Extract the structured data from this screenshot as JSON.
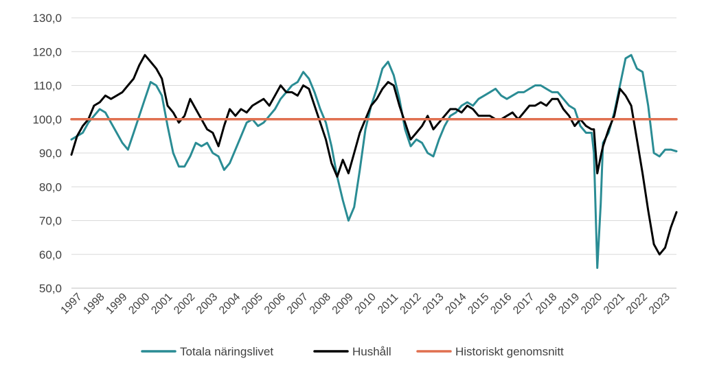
{
  "chart_data": {
    "type": "line",
    "title": "",
    "xlabel": "",
    "ylabel": "",
    "ylim": [
      50,
      130
    ],
    "xlim": [
      1997,
      2023.75
    ],
    "y_ticks": [
      "50,0",
      "60,0",
      "70,0",
      "80,0",
      "90,0",
      "100,0",
      "110,0",
      "120,0",
      "130,0"
    ],
    "x_ticks": [
      "1997",
      "1998",
      "1999",
      "2000",
      "2001",
      "2002",
      "2003",
      "2004",
      "2005",
      "2006",
      "2007",
      "2008",
      "2009",
      "2010",
      "2011",
      "2012",
      "2013",
      "2014",
      "2015",
      "2016",
      "2017",
      "2018",
      "2019",
      "2020",
      "2021",
      "2022",
      "2023"
    ],
    "grid": "horizontal",
    "legend_position": "bottom",
    "series": [
      {
        "name": "Totala näringslivet",
        "color": "#2a8c94",
        "x": [
          1997.0,
          1997.25,
          1997.5,
          1997.75,
          1998.0,
          1998.25,
          1998.5,
          1998.75,
          1999.0,
          1999.25,
          1999.5,
          1999.75,
          2000.0,
          2000.25,
          2000.5,
          2000.75,
          2001.0,
          2001.25,
          2001.5,
          2001.75,
          2002.0,
          2002.25,
          2002.5,
          2002.75,
          2003.0,
          2003.25,
          2003.5,
          2003.75,
          2004.0,
          2004.25,
          2004.5,
          2004.75,
          2005.0,
          2005.25,
          2005.5,
          2005.75,
          2006.0,
          2006.25,
          2006.5,
          2006.75,
          2007.0,
          2007.25,
          2007.5,
          2007.75,
          2008.0,
          2008.25,
          2008.5,
          2008.75,
          2009.0,
          2009.25,
          2009.5,
          2009.75,
          2010.0,
          2010.25,
          2010.5,
          2010.75,
          2011.0,
          2011.25,
          2011.5,
          2011.75,
          2012.0,
          2012.25,
          2012.5,
          2012.75,
          2013.0,
          2013.25,
          2013.5,
          2013.75,
          2014.0,
          2014.25,
          2014.5,
          2014.75,
          2015.0,
          2015.25,
          2015.5,
          2015.75,
          2016.0,
          2016.25,
          2016.5,
          2016.75,
          2017.0,
          2017.25,
          2017.5,
          2017.75,
          2018.0,
          2018.25,
          2018.5,
          2018.75,
          2019.0,
          2019.25,
          2019.5,
          2019.75,
          2020.0,
          2020.1,
          2020.25,
          2020.4,
          2020.5,
          2020.75,
          2021.0,
          2021.25,
          2021.5,
          2021.75,
          2022.0,
          2022.25,
          2022.5,
          2022.75,
          2023.0,
          2023.25,
          2023.5,
          2023.75
        ],
        "values": [
          94,
          95,
          96,
          99,
          101,
          103,
          102,
          99,
          96,
          93,
          91,
          96,
          101,
          106,
          111,
          110,
          107,
          98,
          90,
          86,
          86,
          89,
          93,
          92,
          93,
          90,
          89,
          85,
          87,
          91,
          95,
          99,
          100,
          98,
          99,
          101,
          103,
          106,
          108,
          110,
          111,
          114,
          112,
          108,
          103,
          99,
          92,
          83,
          76,
          70,
          74,
          85,
          97,
          104,
          109,
          115,
          117,
          113,
          106,
          97,
          92,
          94,
          93,
          90,
          89,
          94,
          98,
          101,
          102,
          104,
          105,
          104,
          106,
          107,
          108,
          109,
          107,
          106,
          107,
          108,
          108,
          109,
          110,
          110,
          109,
          108,
          108,
          106,
          104,
          103,
          98,
          96,
          96,
          90,
          56,
          75,
          93,
          96,
          102,
          110,
          118,
          119,
          115,
          114,
          104,
          90,
          89,
          91,
          91,
          90.5
        ]
      },
      {
        "name": "Hushåll",
        "color": "#000000",
        "x": [
          1997.0,
          1997.25,
          1997.5,
          1997.75,
          1998.0,
          1998.25,
          1998.5,
          1998.75,
          1999.0,
          1999.25,
          1999.5,
          1999.75,
          2000.0,
          2000.25,
          2000.5,
          2000.75,
          2001.0,
          2001.25,
          2001.5,
          2001.75,
          2002.0,
          2002.25,
          2002.5,
          2002.75,
          2003.0,
          2003.25,
          2003.5,
          2003.75,
          2004.0,
          2004.25,
          2004.5,
          2004.75,
          2005.0,
          2005.25,
          2005.5,
          2005.75,
          2006.0,
          2006.25,
          2006.5,
          2006.75,
          2007.0,
          2007.25,
          2007.5,
          2007.75,
          2008.0,
          2008.25,
          2008.5,
          2008.75,
          2009.0,
          2009.25,
          2009.5,
          2009.75,
          2010.0,
          2010.25,
          2010.5,
          2010.75,
          2011.0,
          2011.25,
          2011.5,
          2011.75,
          2012.0,
          2012.25,
          2012.5,
          2012.75,
          2013.0,
          2013.25,
          2013.5,
          2013.75,
          2014.0,
          2014.25,
          2014.5,
          2014.75,
          2015.0,
          2015.25,
          2015.5,
          2015.75,
          2016.0,
          2016.25,
          2016.5,
          2016.75,
          2017.0,
          2017.25,
          2017.5,
          2017.75,
          2018.0,
          2018.25,
          2018.5,
          2018.75,
          2019.0,
          2019.25,
          2019.5,
          2019.75,
          2020.0,
          2020.1,
          2020.25,
          2020.4,
          2020.5,
          2020.75,
          2021.0,
          2021.25,
          2021.5,
          2021.75,
          2022.0,
          2022.25,
          2022.5,
          2022.75,
          2023.0,
          2023.25,
          2023.5,
          2023.75
        ],
        "values": [
          89.5,
          95,
          98,
          100,
          104,
          105,
          107,
          106,
          107,
          108,
          110,
          112,
          116,
          119,
          117,
          115,
          112,
          104,
          102,
          99,
          101,
          106,
          103,
          100,
          97,
          96,
          92,
          98,
          103,
          101,
          103,
          102,
          104,
          105,
          106,
          104,
          107,
          110,
          108,
          108,
          107,
          110,
          109,
          104,
          99,
          94,
          87,
          83,
          88,
          84,
          90,
          96,
          100,
          104,
          106,
          109,
          111,
          110,
          104,
          99,
          94,
          96,
          98,
          101,
          97,
          99,
          101,
          103,
          103,
          102,
          104,
          103,
          101,
          101,
          101,
          100,
          100,
          101,
          102,
          100,
          102,
          104,
          104,
          105,
          104,
          106,
          106,
          103,
          101,
          98,
          100,
          98,
          97,
          97,
          84,
          89,
          92,
          97,
          101,
          109,
          107,
          104,
          94,
          84,
          73,
          63,
          60,
          62,
          68,
          72.5
        ]
      },
      {
        "name": "Historiskt genomsnitt",
        "color": "#e07050",
        "x": [
          1997.0,
          2023.75
        ],
        "values": [
          100,
          100
        ]
      }
    ]
  }
}
